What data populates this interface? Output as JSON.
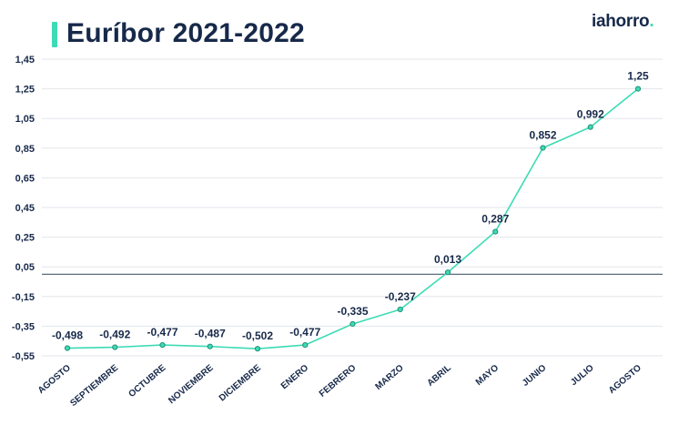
{
  "title": "Euríbor 2021-2022",
  "brand": {
    "name": "iahorro",
    "dot": "."
  },
  "colors": {
    "line": "#3ddbb5",
    "text": "#17294a",
    "grid": "#e3e6ea",
    "baseline": "#5b6b7e",
    "title_accent": "#3ddbb5"
  },
  "chart_data": {
    "type": "line",
    "title": "Euríbor 2021-2022",
    "xlabel": "",
    "ylabel": "",
    "categories": [
      "AGOSTO",
      "SEPTIEMBRE",
      "OCTUBRE",
      "NOVIEMBRE",
      "DICIEMBRE",
      "ENERO",
      "FEBRERO",
      "MARZO",
      "ABRIL",
      "MAYO",
      "JUNIO",
      "JULIO",
      "AGOSTO"
    ],
    "values": [
      -0.498,
      -0.492,
      -0.477,
      -0.487,
      -0.502,
      -0.477,
      -0.335,
      -0.237,
      0.013,
      0.287,
      0.852,
      0.992,
      1.25
    ],
    "value_labels": [
      "-0,498",
      "-0,492",
      "-0,477",
      "-0,487",
      "-0,502",
      "-0,477",
      "-0,335",
      "-0,237",
      "0,013",
      "0,287",
      "0,852",
      "0,992",
      "1,25"
    ],
    "ylim": [
      -0.55,
      1.45
    ],
    "yticks": [
      1.45,
      1.25,
      1.05,
      0.85,
      0.65,
      0.45,
      0.25,
      0.05,
      -0.15,
      -0.35,
      -0.55
    ],
    "ytick_labels": [
      "1,45",
      "1,25",
      "1,05",
      "0,85",
      "0,65",
      "0,45",
      "0,25",
      "0,05",
      "-0,15",
      "-0,35",
      "-0,55"
    ],
    "reference_line": 0.0,
    "grid": true,
    "legend": "none"
  }
}
